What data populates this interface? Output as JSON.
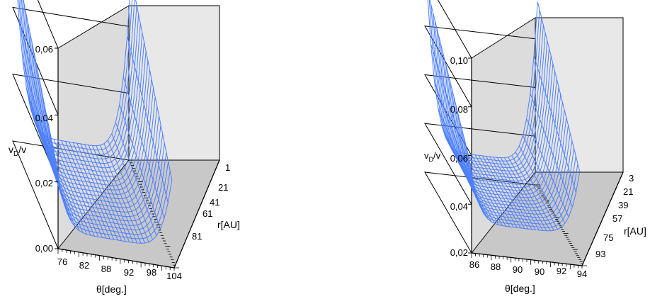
{
  "chart_data": [
    {
      "type": "surface",
      "zlabel": "v_D/v",
      "zlabel_main": "v",
      "zlabel_sub": "D",
      "zlabel_rest": "/v",
      "xlabel": "θ[deg.]",
      "ylabel": "r[AU]",
      "z_ticks": [
        "0,00",
        "0,02",
        "0,04",
        "0,06"
      ],
      "x_ticks": [
        "76",
        "82",
        "88",
        "92",
        "98",
        "104"
      ],
      "y_ticks": [
        "1",
        "21",
        "41",
        "61",
        "81"
      ],
      "zlim": [
        0.0,
        0.06
      ],
      "xlim": [
        76,
        104
      ],
      "ylim": [
        1,
        101
      ],
      "surface": {
        "description_values": "v_D/v rises toward both θ edges (valley centered near θ=90), values higher at small r",
        "edge_max": 0.058,
        "center_min": 0.004
      },
      "color": "#4d7fff"
    },
    {
      "type": "surface",
      "zlabel": "v_D/v",
      "zlabel_main": "v",
      "zlabel_sub": "D",
      "zlabel_rest": "/v",
      "xlabel": "θ[deg.]",
      "ylabel": "r[AU]",
      "z_ticks": [
        "0,02",
        "0,04",
        "0,06",
        "0,08",
        "0,10"
      ],
      "x_ticks": [
        "86",
        "88",
        "90",
        "90",
        "92",
        "94"
      ],
      "y_ticks": [
        "3",
        "21",
        "39",
        "57",
        "75",
        "93"
      ],
      "zlim": [
        0.02,
        0.1
      ],
      "xlim": [
        86,
        94
      ],
      "ylim": [
        3,
        101
      ],
      "surface": {
        "edge_max": 0.099,
        "center_min": 0.031
      },
      "color": "#4d7fff"
    }
  ]
}
